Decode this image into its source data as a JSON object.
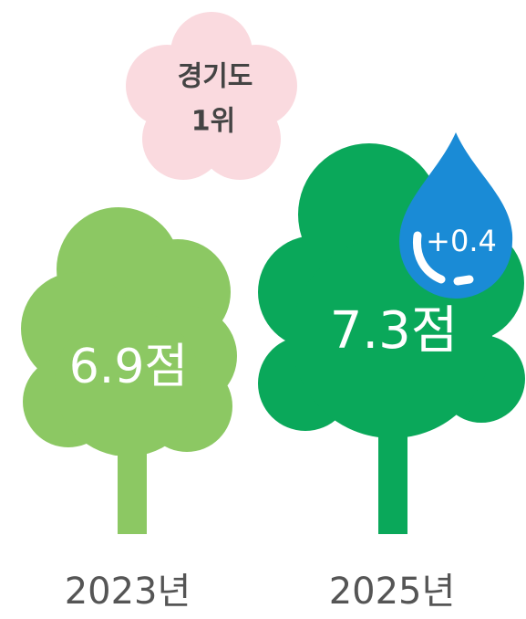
{
  "badge": {
    "lines": [
      "경기도",
      "1위"
    ]
  },
  "trees": [
    {
      "score": "6.9점",
      "year": "2023년"
    },
    {
      "score": "7.3점",
      "year": "2025년",
      "change": "+0.4"
    }
  ]
}
